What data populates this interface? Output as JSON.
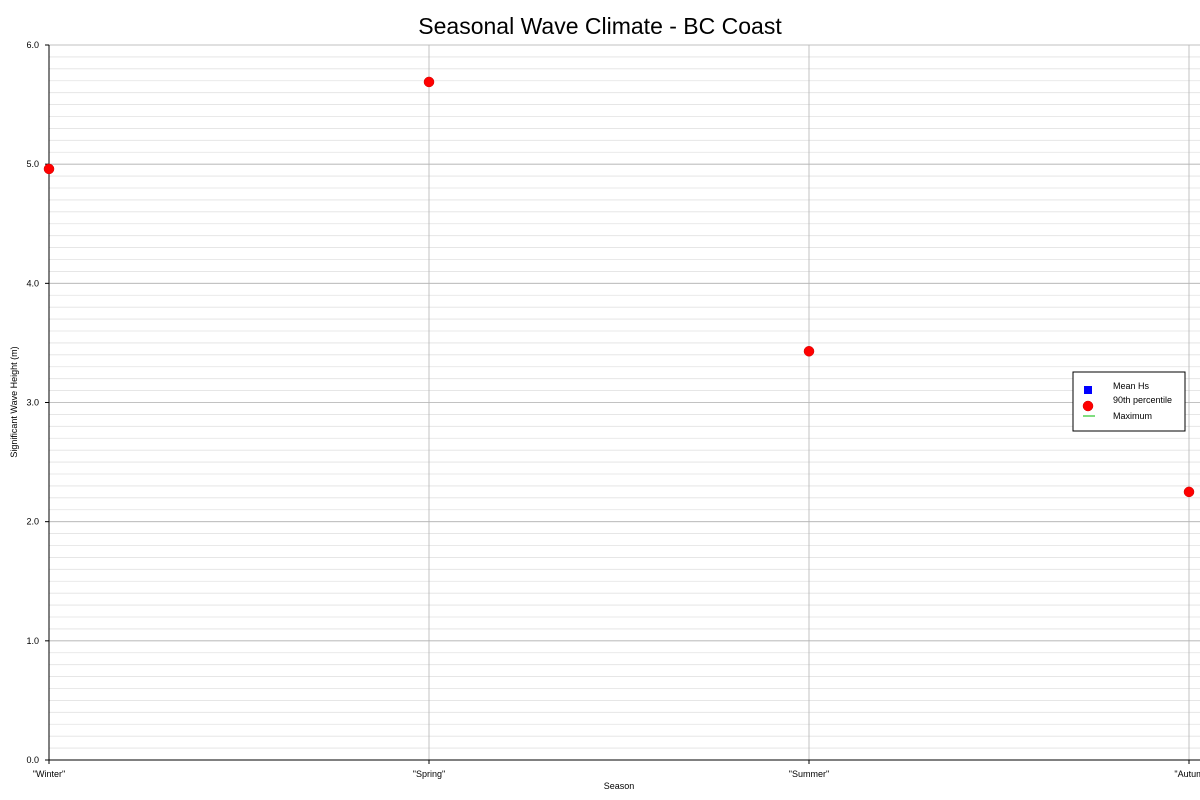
{
  "chart_data": {
    "type": "scatter",
    "title": "Seasonal Wave Climate - BC Coast",
    "xlabel": "Season",
    "ylabel": "Significant Wave Height (m)",
    "categories": [
      "\"Winter\"",
      "\"Spring\"",
      "\"Summer\"",
      "\"Autum"
    ],
    "ylim": [
      0,
      6
    ],
    "yticks": [
      "0.0",
      "1.0",
      "2.0",
      "3.0",
      "4.0",
      "5.0",
      "6.0"
    ],
    "grid": true,
    "legend_position": "right",
    "series": [
      {
        "name": "Mean Hs",
        "marker": "square",
        "color": "#0000ff",
        "values": []
      },
      {
        "name": "90th percentile",
        "marker": "circle",
        "color": "#ff0000",
        "values": [
          4.96,
          5.69,
          3.43,
          2.25
        ]
      },
      {
        "name": "Maximum",
        "marker": "line",
        "color": "#00bb00",
        "values": []
      }
    ]
  }
}
